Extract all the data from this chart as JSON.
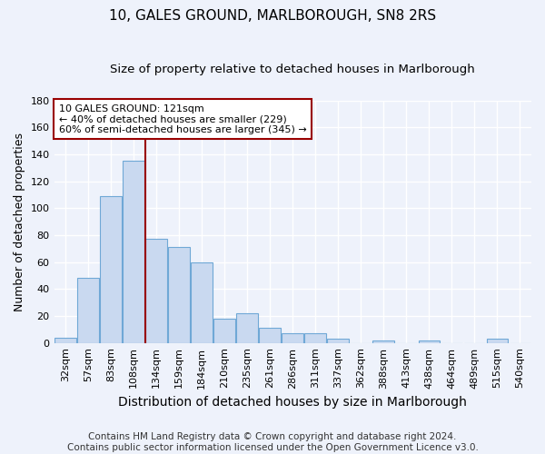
{
  "title": "10, GALES GROUND, MARLBOROUGH, SN8 2RS",
  "subtitle": "Size of property relative to detached houses in Marlborough",
  "xlabel": "Distribution of detached houses by size in Marlborough",
  "ylabel": "Number of detached properties",
  "bar_labels": [
    "32sqm",
    "57sqm",
    "83sqm",
    "108sqm",
    "134sqm",
    "159sqm",
    "184sqm",
    "210sqm",
    "235sqm",
    "261sqm",
    "286sqm",
    "311sqm",
    "337sqm",
    "362sqm",
    "388sqm",
    "413sqm",
    "438sqm",
    "464sqm",
    "489sqm",
    "515sqm",
    "540sqm"
  ],
  "bar_values": [
    4,
    48,
    109,
    135,
    77,
    71,
    60,
    18,
    22,
    11,
    7,
    7,
    3,
    0,
    2,
    0,
    2,
    0,
    0,
    3,
    0
  ],
  "bar_color": "#c9d9f0",
  "bar_edge_color": "#6fa8d6",
  "ylim": [
    0,
    180
  ],
  "yticks": [
    0,
    20,
    40,
    60,
    80,
    100,
    120,
    140,
    160,
    180
  ],
  "vline_x": 3.5,
  "vline_color": "#990000",
  "annotation_box_text": "10 GALES GROUND: 121sqm\n← 40% of detached houses are smaller (229)\n60% of semi-detached houses are larger (345) →",
  "annotation_box_edge_color": "#990000",
  "footer_line1": "Contains HM Land Registry data © Crown copyright and database right 2024.",
  "footer_line2": "Contains public sector information licensed under the Open Government Licence v3.0.",
  "bg_color": "#eef2fb",
  "grid_color": "#ffffff",
  "title_fontsize": 11,
  "subtitle_fontsize": 9.5,
  "xlabel_fontsize": 10,
  "ylabel_fontsize": 9,
  "tick_fontsize": 8,
  "footer_fontsize": 7.5,
  "annotation_fontsize": 8
}
